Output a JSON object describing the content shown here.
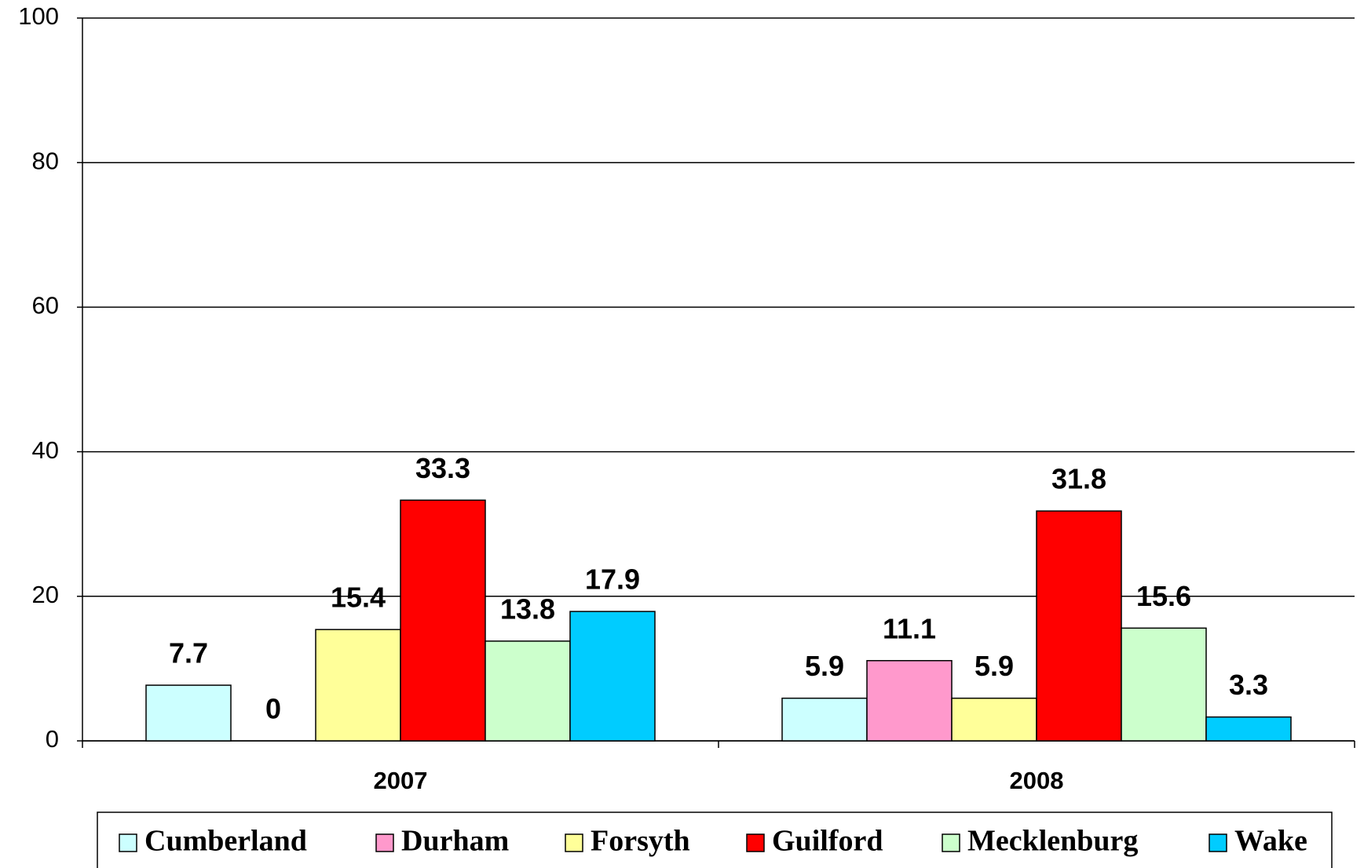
{
  "chart_data": {
    "type": "bar",
    "categories": [
      "2007",
      "2008"
    ],
    "series": [
      {
        "name": "Cumberland",
        "color": "#ccffff",
        "values": [
          7.7,
          5.9
        ]
      },
      {
        "name": "Durham",
        "color": "#ff99cc",
        "values": [
          0,
          11.1
        ]
      },
      {
        "name": "Forsyth",
        "color": "#ffff99",
        "values": [
          15.4,
          5.9
        ]
      },
      {
        "name": "Guilford",
        "color": "#ff0000",
        "values": [
          33.3,
          31.8
        ]
      },
      {
        "name": "Mecklenburg",
        "color": "#ccffcc",
        "values": [
          13.8,
          15.6
        ]
      },
      {
        "name": "Wake",
        "color": "#00ccff",
        "values": [
          17.9,
          3.3
        ]
      }
    ],
    "ylim": [
      0,
      100
    ],
    "yticks": [
      0,
      20,
      40,
      60,
      80,
      100
    ],
    "grid": true,
    "legend": "bottom"
  }
}
